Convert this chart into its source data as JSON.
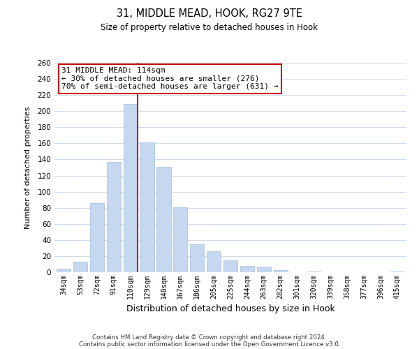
{
  "title": "31, MIDDLE MEAD, HOOK, RG27 9TE",
  "subtitle": "Size of property relative to detached houses in Hook",
  "xlabel": "Distribution of detached houses by size in Hook",
  "ylabel": "Number of detached properties",
  "categories": [
    "34sqm",
    "53sqm",
    "72sqm",
    "91sqm",
    "110sqm",
    "129sqm",
    "148sqm",
    "167sqm",
    "186sqm",
    "205sqm",
    "225sqm",
    "244sqm",
    "263sqm",
    "282sqm",
    "301sqm",
    "320sqm",
    "339sqm",
    "358sqm",
    "377sqm",
    "396sqm",
    "415sqm"
  ],
  "values": [
    4,
    13,
    86,
    137,
    209,
    161,
    131,
    81,
    35,
    26,
    15,
    8,
    7,
    3,
    0,
    1,
    0,
    0,
    0,
    0,
    1
  ],
  "bar_color": "#c5d8f0",
  "bar_edge_color": "#a0bedd",
  "highlight_bar_index": 4,
  "highlight_line_color": "#cc0000",
  "annotation_line1": "31 MIDDLE MEAD: 114sqm",
  "annotation_line2": "← 30% of detached houses are smaller (276)",
  "annotation_line3": "70% of semi-detached houses are larger (631) →",
  "annotation_box_color": "#ffffff",
  "annotation_box_edge_color": "#cc0000",
  "ylim": [
    0,
    260
  ],
  "yticks": [
    0,
    20,
    40,
    60,
    80,
    100,
    120,
    140,
    160,
    180,
    200,
    220,
    240,
    260
  ],
  "footer_line1": "Contains HM Land Registry data © Crown copyright and database right 2024.",
  "footer_line2": "Contains public sector information licensed under the Open Government Licence v3.0.",
  "background_color": "#ffffff",
  "grid_color": "#d0dae8"
}
